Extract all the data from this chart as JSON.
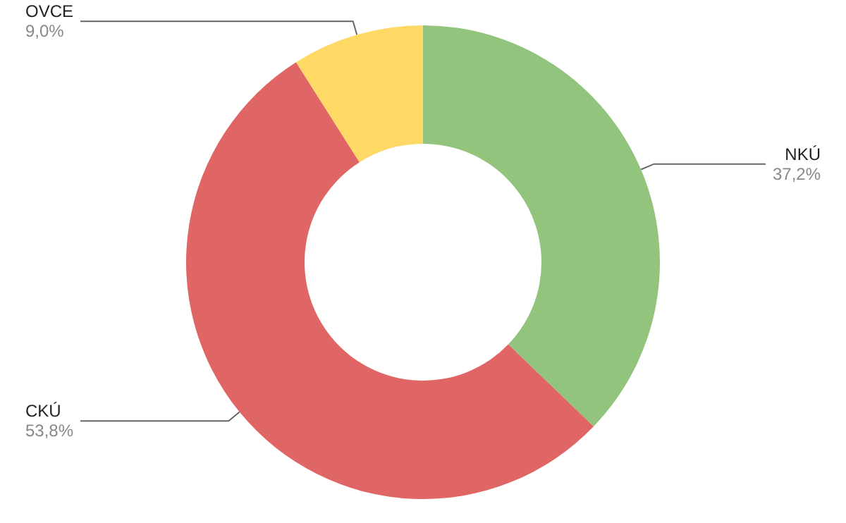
{
  "chart_data": {
    "type": "donut",
    "categories": [
      "NKÚ",
      "CKÚ",
      "OVCE"
    ],
    "values": [
      37.2,
      53.8,
      9.0
    ],
    "colors": [
      "#93c47d",
      "#e06666",
      "#ffd966"
    ],
    "value_labels": [
      "37,2%",
      "53,8%",
      "9,0%"
    ],
    "legend": false
  }
}
